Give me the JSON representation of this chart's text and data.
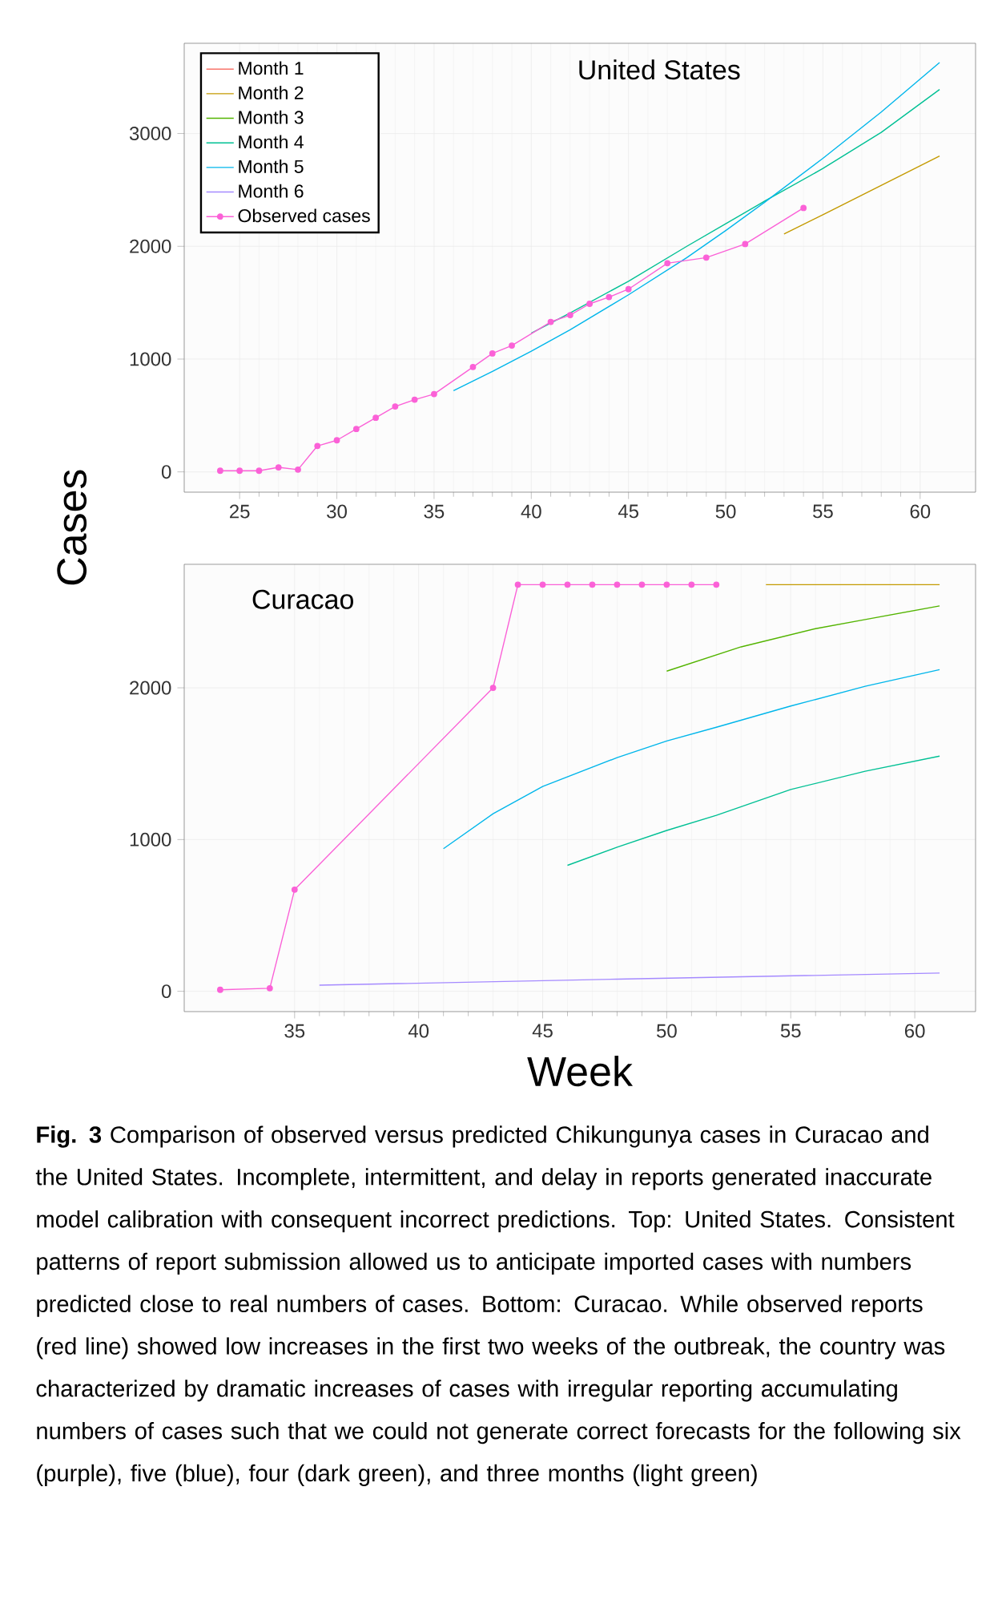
{
  "chart_data": [
    {
      "type": "line",
      "title": "United States",
      "ylabel": "Cases",
      "xlim": [
        22.15,
        62.85
      ],
      "ylim": [
        -180,
        3800
      ],
      "xticks": [
        25,
        30,
        35,
        40,
        45,
        50,
        55,
        60
      ],
      "yticks": [
        0,
        1000,
        2000,
        3000
      ],
      "grid": true,
      "legend": "top left",
      "series": [
        {
          "name": "Month 1",
          "color": "#f8766d"
        },
        {
          "name": "Month 2",
          "color": "#c49a00",
          "x": [
            53,
            55,
            58,
            61
          ],
          "values": [
            2110,
            2280,
            2540,
            2800
          ]
        },
        {
          "name": "Month 3",
          "color": "#53b400"
        },
        {
          "name": "Month 4",
          "color": "#00c094",
          "x": [
            40,
            42,
            45,
            48,
            50,
            52,
            55,
            58,
            61
          ],
          "values": [
            1230,
            1410,
            1690,
            2000,
            2200,
            2400,
            2690,
            3010,
            3390
          ]
        },
        {
          "name": "Month 5",
          "color": "#00b6eb",
          "x": [
            36,
            38,
            40,
            42,
            45,
            48,
            50,
            52,
            55,
            58,
            61
          ],
          "values": [
            720,
            890,
            1070,
            1260,
            1570,
            1900,
            2140,
            2390,
            2780,
            3190,
            3630
          ]
        },
        {
          "name": "Month 6",
          "color": "#a58aff"
        },
        {
          "name": "Observed cases",
          "color": "#fb61d7",
          "marker": "circle",
          "x": [
            24,
            25,
            26,
            27,
            28,
            29,
            30,
            31,
            32,
            33,
            34,
            35,
            37,
            38,
            39,
            41,
            42,
            43,
            44,
            45,
            47,
            49,
            51,
            54
          ],
          "values": [
            10,
            10,
            10,
            40,
            20,
            230,
            280,
            380,
            480,
            580,
            640,
            690,
            930,
            1050,
            1120,
            1330,
            1390,
            1490,
            1550,
            1620,
            1850,
            1900,
            2020,
            2340
          ]
        }
      ]
    },
    {
      "type": "line",
      "title": "Curacao",
      "xlabel": "Week",
      "xlim": [
        30.55,
        62.45
      ],
      "ylim": [
        -134,
        2814
      ],
      "xticks": [
        35,
        40,
        45,
        50,
        55,
        60
      ],
      "yticks": [
        0,
        1000,
        2000
      ],
      "grid": true,
      "annotations": [
        "**Fig. 3** Comparison of observed versus predicted Chikungunya cases in Curacao and the United States. Incomplete, intermittent, and delay in reports generated inaccurate model calibration with consequent incorrect predictions. Top: United States. Consistent patterns of report submission allowed us to anticipate imported cases with numbers predicted close to real numbers of cases. Bottom: Curacao. While observed reports (red line) showed low increases in the first two weeks of the outbreak, the country was characterized by dramatic increases of cases with irregular reporting accumulating numbers of cases such that we could not generate correct forecasts for the following six (purple), five (blue), four (dark green), and three months (light green)"
      ],
      "series": [
        {
          "color": "#c49a00",
          "x": [
            54,
            61
          ],
          "values": [
            2680,
            2680
          ]
        },
        {
          "color": "#53b400",
          "x": [
            50,
            53,
            56,
            58,
            61
          ],
          "values": [
            2110,
            2270,
            2390,
            2450,
            2540
          ]
        },
        {
          "color": "#00c094",
          "x": [
            46,
            48,
            50,
            52,
            55,
            58,
            61
          ],
          "values": [
            830,
            950,
            1060,
            1160,
            1330,
            1450,
            1550
          ]
        },
        {
          "color": "#00b6eb",
          "x": [
            41,
            43,
            45,
            48,
            50,
            52,
            55,
            58,
            61
          ],
          "values": [
            940,
            1170,
            1350,
            1540,
            1650,
            1740,
            1880,
            2010,
            2120
          ]
        },
        {
          "color": "#a58aff",
          "x": [
            36,
            48,
            61
          ],
          "values": [
            40,
            80,
            120
          ]
        },
        {
          "color": "#fb61d7",
          "marker": "circle",
          "x": [
            32,
            34,
            35,
            43,
            44,
            45,
            46,
            47,
            48,
            49,
            50,
            51,
            52
          ],
          "values": [
            10,
            20,
            670,
            2000,
            2680,
            2680,
            2680,
            2680,
            2680,
            2680,
            2680,
            2680,
            2680
          ]
        }
      ]
    }
  ]
}
